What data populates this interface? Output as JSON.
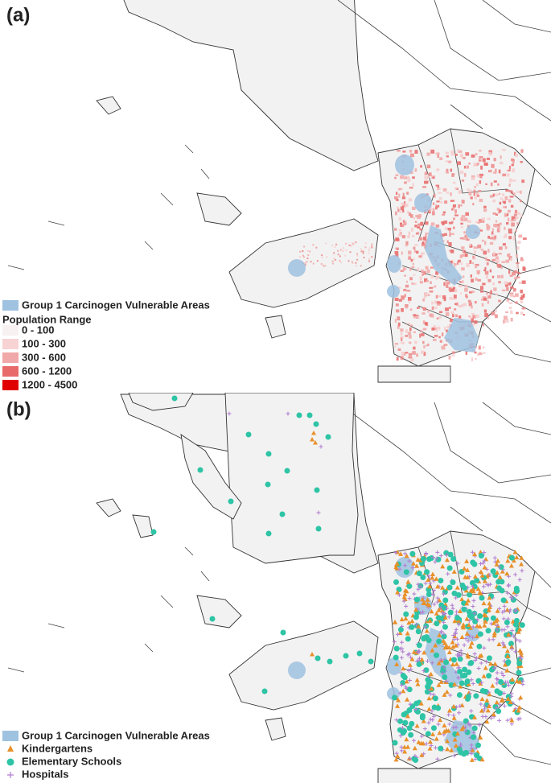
{
  "panels": [
    {
      "label": "(a)",
      "legend": {
        "area": "Group 1 Carcinogen Vulnerable Areas",
        "title": "Population Range",
        "ranges": [
          "0 - 100",
          "100 - 300",
          "300 - 600",
          "600 - 1200",
          "1200 - 4500"
        ]
      }
    },
    {
      "label": "(b)",
      "legend": {
        "area": "Group 1 Carcinogen Vulnerable Areas",
        "items": [
          "Kindergartens",
          "Elementary Schools",
          "Hospitals"
        ]
      }
    }
  ]
}
